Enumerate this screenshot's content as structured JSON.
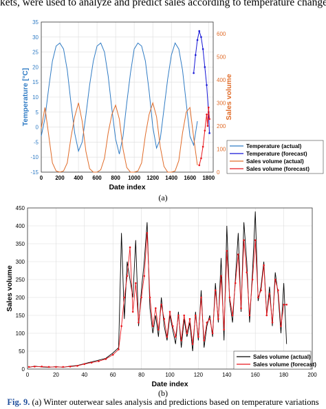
{
  "top_text": "kets, were used to analyze and predict sales according to temperature change.",
  "label_a": "(a)",
  "label_b": "(b)",
  "caption": {
    "fig": "Fig. 9.",
    "text": " (a) Winter outerwear sales analysis and predictions based on temperature variations"
  },
  "colors": {
    "temp_actual": "#2f7bc4",
    "temp_forecast": "#1515d6",
    "sales_actual": "#e06b28",
    "sales_forecast": "#e8161c",
    "sales_b_actual": "#000000",
    "sales_b_forecast": "#e8161c"
  },
  "chart_data": [
    {
      "type": "line",
      "xlabel": "Date index",
      "ylabel_left": "Temperature [°C]",
      "ylabel_right": "Sales volume",
      "xlim": [
        0,
        1850
      ],
      "ylim_left": [
        -15,
        35
      ],
      "ylim_right": [
        0,
        650
      ],
      "xticks": [
        0,
        200,
        400,
        600,
        800,
        1000,
        1200,
        1400,
        1600,
        1800
      ],
      "yticks_left": [
        -15,
        -10,
        -5,
        0,
        5,
        10,
        15,
        20,
        25,
        30,
        35
      ],
      "yticks_right": [
        0,
        100,
        200,
        300,
        400,
        500,
        600
      ],
      "grid": true,
      "legend_position": "bottom-right",
      "legend": [
        "Temperature (actual)",
        "Temperature (forecast)",
        "Sales volume (actual)",
        "Sales volume (forecast)"
      ],
      "series": [
        {
          "name": "Temperature (actual)",
          "axis": "left",
          "x": [
            0,
            40,
            80,
            120,
            160,
            200,
            240,
            280,
            320,
            360,
            400,
            440,
            480,
            520,
            560,
            600,
            640,
            680,
            720,
            760,
            800,
            840,
            880,
            920,
            960,
            1000,
            1040,
            1080,
            1120,
            1160,
            1200,
            1240,
            1280,
            1320,
            1360,
            1400,
            1440,
            1480,
            1520,
            1560,
            1600,
            1640,
            1680
          ],
          "y": [
            -3,
            3,
            13,
            22,
            27,
            28,
            26,
            19,
            8,
            -2,
            -8,
            -5,
            4,
            14,
            22,
            27,
            28,
            25,
            17,
            6,
            -4,
            -9,
            -3,
            8,
            18,
            26,
            28,
            27,
            22,
            12,
            0,
            -7,
            -4,
            6,
            16,
            24,
            28,
            26,
            19,
            8,
            -3,
            -6,
            2
          ]
        },
        {
          "name": "Temperature (forecast)",
          "axis": "left",
          "x": [
            1640,
            1660,
            1680,
            1700,
            1720,
            1740,
            1760,
            1780,
            1800,
            1810
          ],
          "y": [
            18,
            24,
            29,
            32,
            30,
            26,
            20,
            14,
            5,
            -2
          ]
        },
        {
          "name": "Sales volume (actual)",
          "axis": "right",
          "x": [
            0,
            40,
            80,
            120,
            160,
            200,
            240,
            280,
            320,
            360,
            400,
            440,
            480,
            520,
            560,
            600,
            640,
            680,
            720,
            760,
            800,
            840,
            880,
            920,
            960,
            1000,
            1040,
            1080,
            1120,
            1160,
            1200,
            1240,
            1280,
            1320,
            1360,
            1400,
            1440,
            1480,
            1520,
            1560,
            1600,
            1640,
            1680
          ],
          "y": [
            190,
            280,
            160,
            40,
            5,
            0,
            5,
            40,
            150,
            240,
            300,
            220,
            90,
            15,
            0,
            0,
            10,
            60,
            170,
            250,
            290,
            230,
            100,
            20,
            0,
            0,
            5,
            40,
            160,
            250,
            300,
            240,
            110,
            25,
            0,
            0,
            5,
            50,
            170,
            260,
            280,
            150,
            30
          ]
        },
        {
          "name": "Sales volume (forecast)",
          "axis": "right",
          "x": [
            1700,
            1720,
            1740,
            1760,
            1780,
            1790,
            1800,
            1810
          ],
          "y": [
            30,
            60,
            110,
            180,
            250,
            200,
            280,
            230
          ]
        }
      ]
    },
    {
      "type": "line",
      "xlabel": "Date index",
      "ylabel": "Sales volume",
      "xlim": [
        0,
        200
      ],
      "ylim": [
        0,
        450
      ],
      "xticks": [
        0,
        20,
        40,
        60,
        80,
        100,
        120,
        140,
        160,
        180,
        200
      ],
      "yticks": [
        0,
        50,
        100,
        150,
        200,
        250,
        300,
        350,
        400,
        450
      ],
      "grid": true,
      "legend_position": "bottom-right",
      "legend": [
        "Sales volume (actual)",
        "Sales volume (forecast)"
      ],
      "series": [
        {
          "name": "Sales volume (actual)",
          "x": [
            1,
            5,
            10,
            15,
            20,
            25,
            30,
            35,
            40,
            45,
            50,
            55,
            60,
            64,
            66,
            68,
            70,
            72,
            74,
            76,
            78,
            80,
            82,
            84,
            86,
            88,
            90,
            92,
            94,
            96,
            98,
            100,
            102,
            104,
            106,
            108,
            110,
            112,
            114,
            116,
            118,
            120,
            122,
            124,
            126,
            128,
            130,
            132,
            134,
            136,
            138,
            140,
            142,
            144,
            146,
            148,
            150,
            152,
            154,
            156,
            158,
            160,
            162,
            164,
            166,
            168,
            170,
            172,
            174,
            176,
            178,
            180,
            182
          ],
          "y": [
            5,
            8,
            6,
            5,
            7,
            5,
            8,
            10,
            15,
            20,
            25,
            30,
            45,
            60,
            380,
            140,
            300,
            250,
            200,
            360,
            120,
            220,
            300,
            410,
            170,
            100,
            150,
            90,
            200,
            120,
            80,
            150,
            110,
            70,
            160,
            60,
            140,
            90,
            130,
            50,
            160,
            80,
            220,
            60,
            120,
            150,
            90,
            240,
            130,
            310,
            80,
            400,
            190,
            130,
            250,
            380,
            160,
            410,
            300,
            130,
            270,
            440,
            190,
            230,
            300,
            150,
            230,
            120,
            270,
            210,
            100,
            240,
            70
          ]
        },
        {
          "name": "Sales volume (forecast)",
          "x": [
            1,
            5,
            10,
            15,
            20,
            25,
            30,
            35,
            40,
            45,
            50,
            55,
            60,
            64,
            66,
            68,
            70,
            72,
            74,
            76,
            78,
            80,
            82,
            84,
            86,
            88,
            90,
            92,
            94,
            96,
            98,
            100,
            102,
            104,
            106,
            108,
            110,
            112,
            114,
            116,
            118,
            120,
            122,
            124,
            126,
            128,
            130,
            132,
            134,
            136,
            138,
            140,
            142,
            144,
            146,
            148,
            150,
            152,
            154,
            156,
            158,
            160,
            162,
            164,
            166,
            168,
            170,
            172,
            174,
            176,
            178,
            180,
            182
          ],
          "y": [
            6,
            7,
            7,
            6,
            6,
            6,
            7,
            9,
            14,
            18,
            22,
            28,
            40,
            55,
            120,
            200,
            260,
            340,
            160,
            240,
            130,
            200,
            260,
            380,
            200,
            120,
            170,
            110,
            180,
            140,
            90,
            160,
            120,
            90,
            150,
            80,
            150,
            100,
            140,
            70,
            150,
            90,
            200,
            80,
            130,
            140,
            100,
            220,
            140,
            260,
            110,
            330,
            200,
            150,
            240,
            320,
            170,
            360,
            270,
            150,
            250,
            360,
            200,
            220,
            290,
            150,
            210,
            130,
            250,
            220,
            120,
            180,
            180
          ]
        }
      ]
    }
  ]
}
